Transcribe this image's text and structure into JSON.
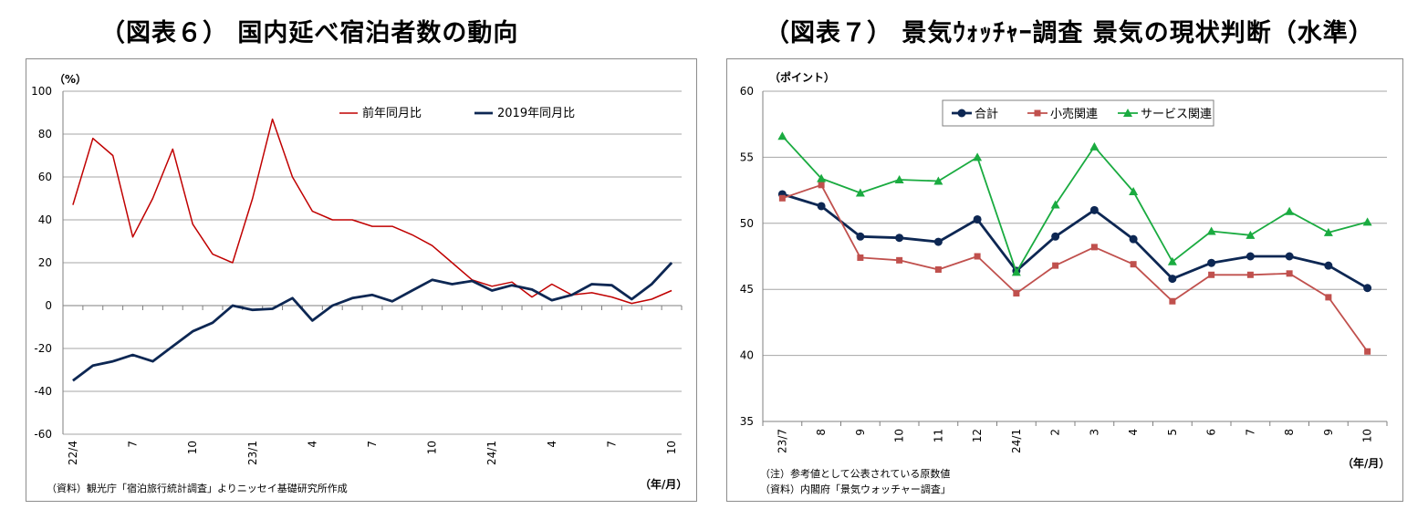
{
  "left": {
    "title": "（図表６） 国内延べ宿泊者数の動向",
    "unit_label": "（%）",
    "axis_suffix": "（年/月）",
    "source_note": "（資料）観光庁「宿泊旅行統計調査」よりニッセイ基礎研究所作成"
  },
  "right": {
    "title": "（図表７） 景気ｳｫｯﾁｬｰ調査 景気の現状判断（水準）",
    "unit_label": "（ポイント）",
    "axis_suffix": "（年/月）",
    "note_1": "（注）参考値として公表されている原数値",
    "note_2": "（資料）内閣府「景気ウォッチャー調査」"
  },
  "chart_data": [
    {
      "type": "line",
      "title": "（図表６） 国内延べ宿泊者数の動向",
      "ylabel": "（%）",
      "xlabel": "（年/月）",
      "ylim": [
        -60,
        100
      ],
      "yticks": [
        -60,
        -40,
        -20,
        0,
        20,
        40,
        60,
        80,
        100
      ],
      "grid": true,
      "legend": "top-right",
      "tick_labels": [
        "22/4",
        "7",
        "10",
        "23/1",
        "4",
        "7",
        "10",
        "24/1",
        "4",
        "7",
        "10"
      ],
      "tick_label_index": [
        0,
        3,
        6,
        9,
        12,
        15,
        18,
        21,
        24,
        27,
        30
      ],
      "series": [
        {
          "name": "前年同月比",
          "color": "#c00000",
          "values": [
            47,
            78,
            70,
            32,
            50,
            73,
            38,
            24,
            20,
            50,
            87,
            60,
            44,
            40,
            40,
            37,
            37,
            33,
            28,
            20,
            12,
            9,
            11,
            4,
            10,
            5,
            6,
            4,
            1,
            3,
            7
          ]
        },
        {
          "name": "2019年同月比",
          "color": "#0d2753",
          "values": [
            -35,
            -28,
            -26,
            -23,
            -26,
            -19,
            -12,
            -8,
            0,
            -2,
            -1.5,
            3.5,
            -7,
            0,
            3.5,
            5,
            2,
            7,
            12,
            10,
            11.5,
            7,
            9.5,
            7.5,
            2.5,
            5,
            10,
            9.5,
            3,
            10,
            20
          ]
        }
      ]
    },
    {
      "type": "line",
      "title": "（図表７） 景気ｳｫｯﾁｬｰ調査 景気の現状判断（水準）",
      "ylabel": "（ポイント）",
      "xlabel": "（年/月）",
      "ylim": [
        35,
        60
      ],
      "yticks": [
        35,
        40,
        45,
        50,
        55,
        60
      ],
      "grid": true,
      "legend": "top-center",
      "categories": [
        "23/7",
        "8",
        "9",
        "10",
        "11",
        "12",
        "24/1",
        "2",
        "3",
        "4",
        "5",
        "6",
        "7",
        "8",
        "9",
        "10"
      ],
      "series": [
        {
          "name": "合計",
          "color": "#0d2753",
          "marker": "circle",
          "values": [
            52.2,
            51.3,
            49.0,
            48.9,
            48.6,
            50.3,
            46.4,
            49.0,
            51.0,
            48.8,
            45.8,
            47.0,
            47.5,
            47.5,
            46.8,
            45.1
          ]
        },
        {
          "name": "小売関連",
          "color": "#c0504d",
          "marker": "square",
          "values": [
            51.9,
            52.9,
            47.4,
            47.2,
            46.5,
            47.5,
            44.7,
            46.8,
            48.2,
            46.9,
            44.1,
            46.1,
            46.1,
            46.2,
            44.4,
            40.3
          ]
        },
        {
          "name": "サービス関連",
          "color": "#1aab40",
          "marker": "triangle",
          "values": [
            56.6,
            53.4,
            52.3,
            53.3,
            53.2,
            55.0,
            46.3,
            51.4,
            55.8,
            52.4,
            47.1,
            49.4,
            49.1,
            50.9,
            49.3,
            50.1
          ]
        }
      ]
    }
  ]
}
